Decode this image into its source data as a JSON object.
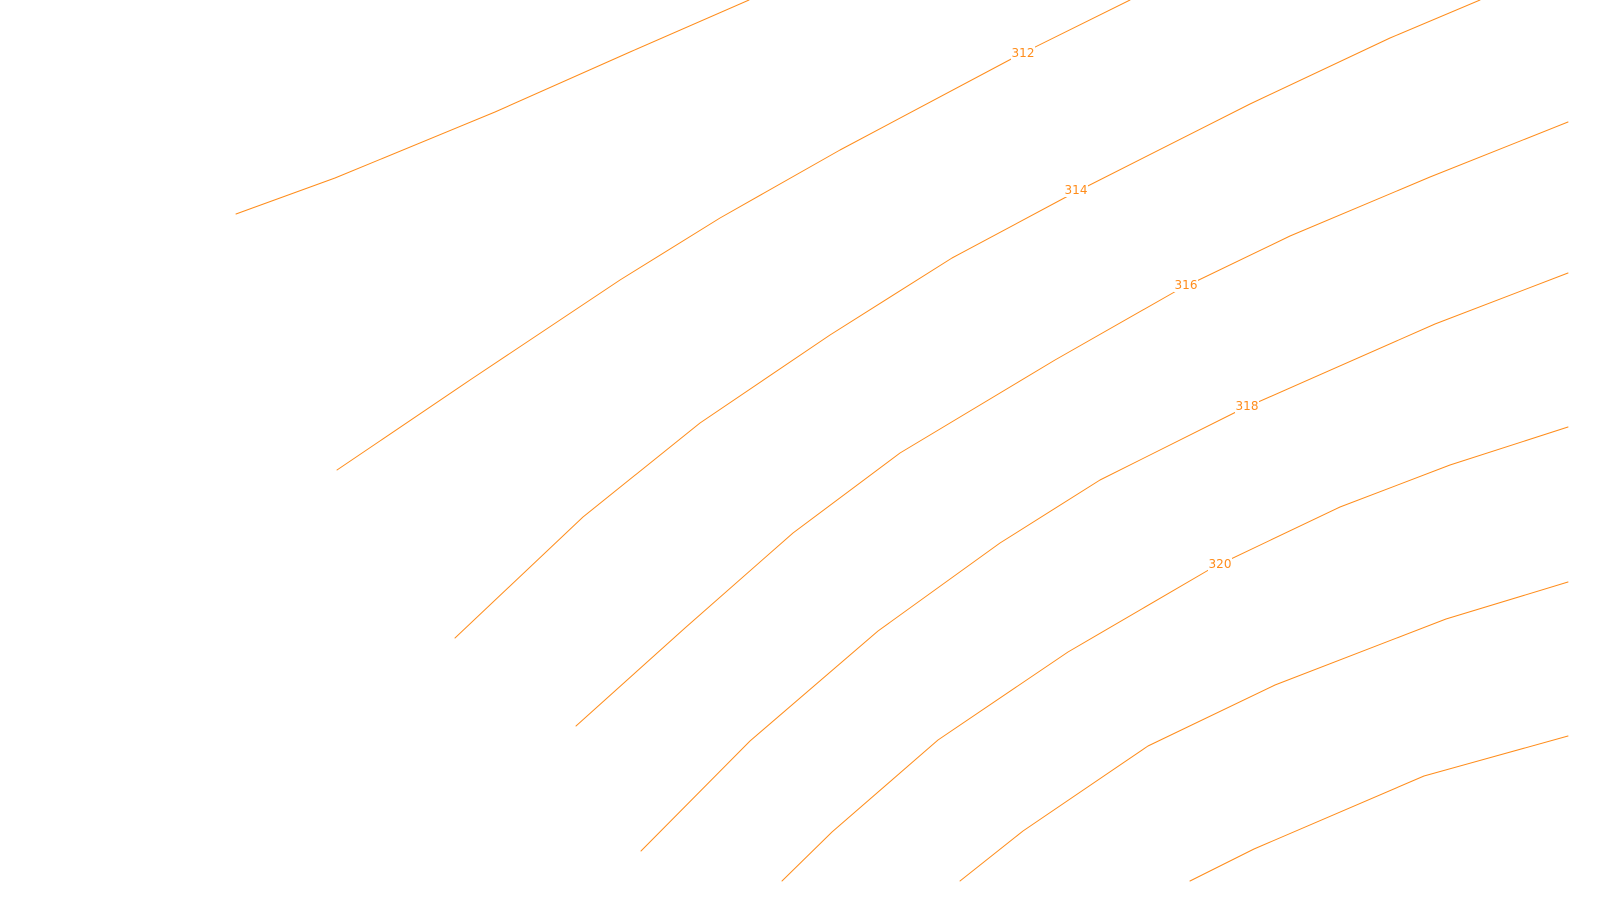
{
  "map": {
    "style": {
      "contour_color": "#ff8c1a",
      "label_color": "#ff8c1a",
      "background": "#ffffff"
    },
    "contour_labels": [
      "312",
      "314",
      "316",
      "318",
      "320"
    ]
  }
}
